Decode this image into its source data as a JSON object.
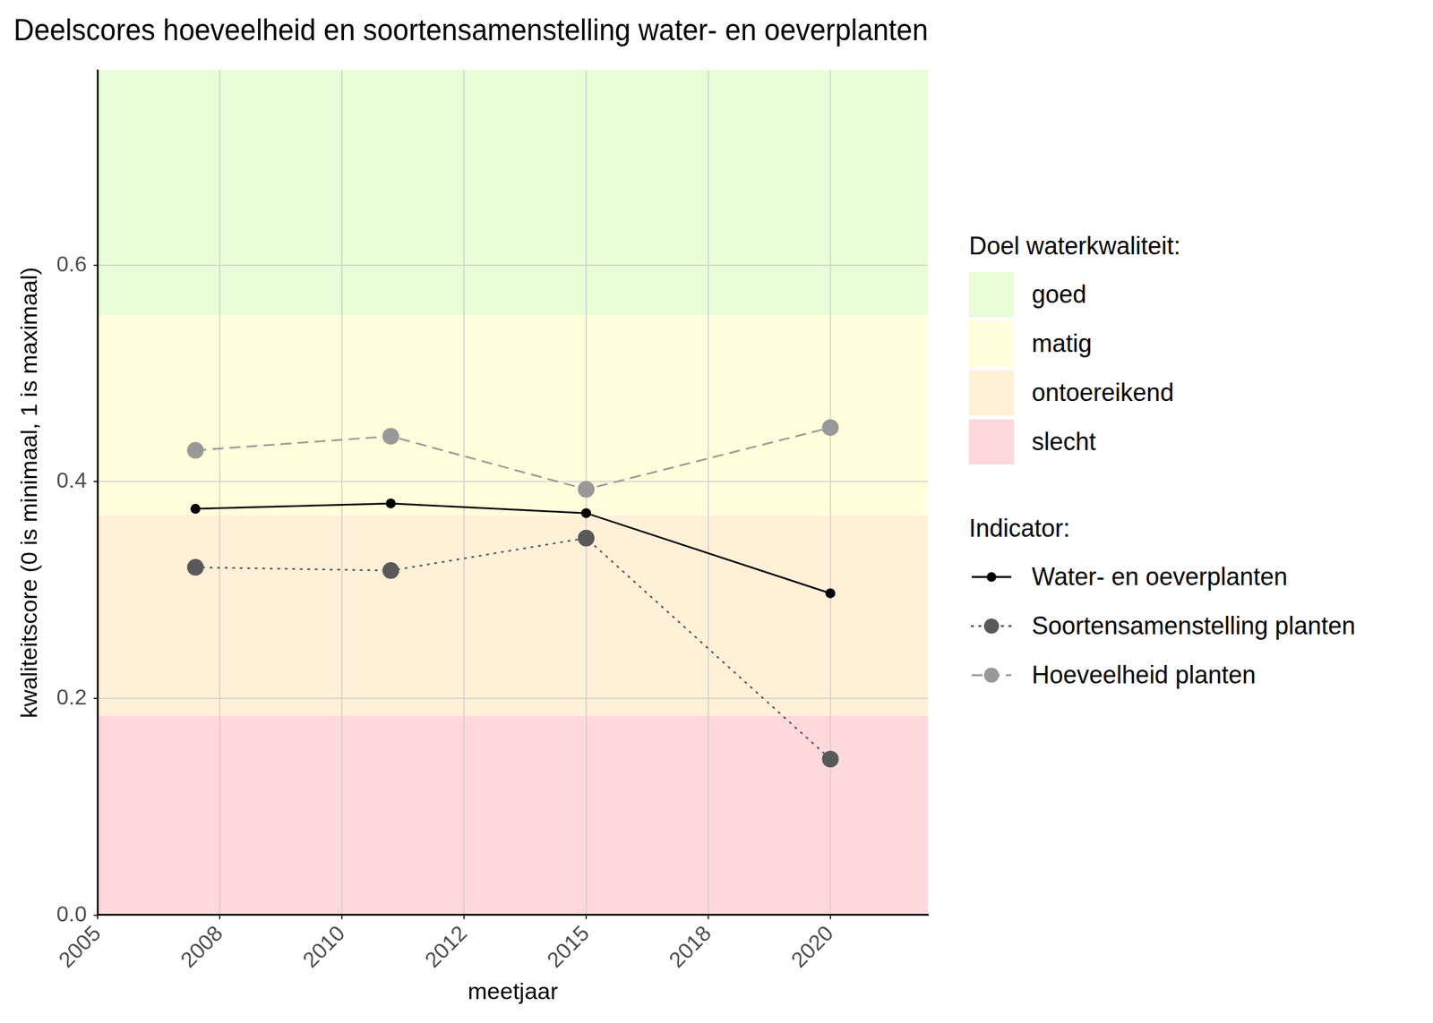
{
  "chart_data": {
    "type": "line",
    "title": "Deelscores hoeveelheid en soortensamenstelling water- en oeverplanten",
    "x_label": "meetjaar",
    "y_label": "kwaliteitscore (0 is minimaal, 1 is maximaal)",
    "x": [
      2007,
      2011,
      2015,
      2020
    ],
    "series": [
      {
        "name": "Water- en oeverplanten",
        "color": "#000000",
        "marker": "circle",
        "line_style": "solid",
        "values": [
          0.375,
          0.38,
          0.371,
          0.297
        ]
      },
      {
        "name": "Soortensamenstelling planten",
        "color": "#595959",
        "marker": "circle",
        "line_style": "dotted",
        "values": [
          0.321,
          0.318,
          0.348,
          0.144
        ]
      },
      {
        "name": "Hoeveelheid planten",
        "color": "#999999",
        "marker": "circle",
        "line_style": "dashed",
        "values": [
          0.429,
          0.442,
          0.393,
          0.45
        ]
      }
    ],
    "xlim": [
      2005,
      2022
    ],
    "xticks": [
      2005,
      {
        "value": 2007.5,
        "label": "2008"
      },
      2010,
      {
        "value": 2012.5,
        "label": "2012"
      },
      2015,
      {
        "value": 2017.5,
        "label": "2018"
      },
      2020
    ],
    "ylim": [
      0,
      0.78
    ],
    "yticks": [
      {
        "value": 0,
        "label": "0.0"
      },
      0.2,
      0.4,
      0.6
    ],
    "grid": true,
    "legend": "right",
    "series_legend_title": "Indicator:",
    "bands": {
      "title": "Doel waterkwaliteit:",
      "items": [
        {
          "name": "goed",
          "color": "#e8fdd8",
          "from": 0.554,
          "to": 1
        },
        {
          "name": "matig",
          "color": "#ffffdb",
          "from": 0.369,
          "to": 0.554
        },
        {
          "name": "ontoereikend",
          "color": "#fff0d8",
          "from": 0.184,
          "to": 0.369
        },
        {
          "name": "slecht",
          "color": "#ffd8db",
          "from": 0,
          "to": 0.184
        }
      ]
    }
  }
}
